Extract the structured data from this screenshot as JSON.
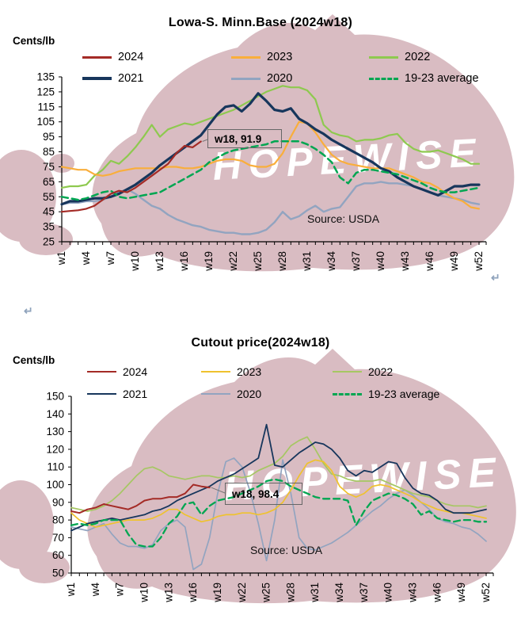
{
  "watermark": {
    "text": "HOPEWISE",
    "color": "#D9BCC2",
    "text_color": "#FFFFFF"
  },
  "page": {
    "return_symbol": "↵"
  },
  "chart_data": [
    {
      "type": "line",
      "title": "Lowa-S. Minn.Base  (2024w18)",
      "y_axis_label": "Cents/lb",
      "source": "Source:  USDA",
      "annotation": {
        "label": "w18, 91.9",
        "week": 18,
        "value": 91.9
      },
      "ylim": [
        25,
        135
      ],
      "y_tick_step": 10,
      "weeks": 52,
      "x_tick_labels": [
        "w1",
        "w4",
        "w7",
        "w10",
        "w13",
        "w16",
        "w19",
        "w22",
        "w25",
        "w28",
        "w31",
        "w34",
        "w37",
        "w40",
        "w43",
        "w46",
        "w49",
        "w52"
      ],
      "legend_position": "top",
      "grid": false,
      "series": [
        {
          "name": "2024",
          "color": "#A42B26",
          "style": "solid",
          "line_width": 2.2,
          "values": [
            45,
            45.5,
            46,
            47,
            49,
            53,
            57,
            59,
            58,
            61,
            65,
            69,
            73,
            77,
            84,
            89,
            88,
            91.9
          ]
        },
        {
          "name": "2023",
          "color": "#F9AE3B",
          "style": "solid",
          "line_width": 2.2,
          "values": [
            75,
            74,
            73,
            73,
            70,
            69,
            70,
            72,
            73,
            74,
            74,
            74,
            74,
            75,
            75,
            74,
            74,
            75,
            77,
            79,
            80,
            80,
            79,
            76,
            75,
            75,
            77,
            84,
            95,
            105,
            104,
            98,
            90,
            83,
            79,
            77,
            76,
            75,
            74,
            74,
            74,
            72,
            70,
            68,
            65,
            64,
            61,
            57,
            54,
            52,
            48,
            47
          ]
        },
        {
          "name": "2022",
          "color": "#8EC94F",
          "style": "solid",
          "line_width": 2.2,
          "values": [
            61,
            62,
            62,
            63,
            69,
            73,
            79,
            77,
            82,
            88,
            95,
            103,
            95,
            100,
            102,
            104,
            103,
            105,
            107,
            109,
            111,
            113,
            116,
            119,
            122,
            125,
            127,
            129,
            128,
            128,
            126,
            120,
            103,
            98,
            96,
            95,
            92,
            93,
            93,
            94,
            96,
            97,
            91,
            87,
            85,
            85,
            86,
            84,
            82,
            80,
            77,
            77
          ]
        },
        {
          "name": "2021",
          "color": "#17365C",
          "style": "solid",
          "line_width": 3.2,
          "values": [
            50,
            52,
            52,
            53,
            54,
            54,
            55,
            57,
            60,
            63,
            67,
            71,
            76,
            80,
            84,
            88,
            92,
            96,
            103,
            110,
            115,
            116,
            112,
            117,
            124,
            119,
            113,
            112,
            114,
            107,
            104,
            100,
            97,
            93,
            90,
            87,
            84,
            81,
            78,
            74,
            72,
            68,
            65,
            62,
            60,
            58,
            56,
            59,
            62,
            62,
            63,
            63
          ]
        },
        {
          "name": "2020",
          "color": "#92A4C0",
          "style": "solid",
          "line_width": 2.4,
          "values": [
            50,
            51,
            51,
            52,
            52,
            53,
            55,
            58,
            60,
            57,
            53,
            49,
            47,
            43,
            40,
            38,
            36,
            35,
            33,
            32,
            31,
            31,
            30,
            30,
            31,
            33,
            38,
            45,
            40,
            42,
            46,
            49,
            45,
            47,
            48,
            55,
            62,
            64,
            64,
            65,
            64,
            64,
            63,
            62,
            60,
            58,
            56,
            55,
            54,
            53,
            51,
            50
          ]
        },
        {
          "name": "19-23 average",
          "color": "#00A651",
          "style": "dashed",
          "line_width": 2.5,
          "values": [
            55,
            54,
            53,
            54,
            56,
            58,
            59,
            55,
            54,
            55,
            56,
            57,
            58,
            61,
            64,
            67,
            70,
            73,
            78,
            81,
            84,
            86,
            87,
            88,
            89,
            90,
            92,
            92,
            92,
            92,
            90,
            87,
            83,
            78,
            68,
            64,
            71,
            73,
            73,
            72,
            71,
            70,
            68,
            66,
            64,
            61,
            59,
            58,
            58,
            59,
            60,
            61
          ]
        }
      ]
    },
    {
      "type": "line",
      "title": "Cutout price(2024w18)",
      "y_axis_label": "Cents/lb",
      "source": "Source:  USDA",
      "annotation": {
        "label": "w18, 98.4",
        "week": 18,
        "value": 98.4
      },
      "ylim": [
        50,
        150
      ],
      "y_tick_step": 10,
      "weeks": 52,
      "x_tick_labels": [
        "w1",
        "w4",
        "w7",
        "w10",
        "w13",
        "w16",
        "w19",
        "w22",
        "w25",
        "w28",
        "w31",
        "w34",
        "w37",
        "w40",
        "w43",
        "w46",
        "w49",
        "w52"
      ],
      "legend_position": "top",
      "grid": false,
      "series": [
        {
          "name": "2024",
          "color": "#A42B26",
          "style": "solid",
          "line_width": 2.0,
          "values": [
            85,
            84,
            86,
            87,
            89,
            88,
            87,
            86,
            88,
            91,
            92,
            92,
            93,
            93,
            95,
            100,
            99,
            98.4
          ]
        },
        {
          "name": "2023",
          "color": "#EFC22E",
          "style": "solid",
          "line_width": 1.7,
          "values": [
            84,
            80,
            78,
            76,
            77,
            78,
            79,
            80,
            80,
            80,
            81,
            83,
            86,
            86,
            83,
            81,
            79,
            80,
            82,
            83,
            83,
            84,
            84,
            83,
            84,
            86,
            90,
            97,
            105,
            112,
            114,
            113,
            108,
            99,
            95,
            93,
            95,
            99,
            100,
            99,
            97,
            95,
            93,
            90,
            88,
            86,
            85,
            84,
            84,
            83,
            82,
            81
          ]
        },
        {
          "name": "2022",
          "color": "#A6C763",
          "style": "solid",
          "line_width": 1.7,
          "values": [
            87,
            86,
            85,
            86,
            88,
            91,
            95,
            100,
            105,
            109,
            110,
            108,
            105,
            104,
            103,
            104,
            105,
            105,
            104,
            104,
            105,
            104,
            105,
            108,
            110,
            112,
            116,
            122,
            125,
            127,
            120,
            112,
            106,
            105,
            103,
            102,
            102,
            102,
            103,
            101,
            99,
            97,
            95,
            94,
            93,
            91,
            89,
            88,
            88,
            88,
            87,
            88
          ]
        },
        {
          "name": "2021",
          "color": "#17365C",
          "style": "solid",
          "line_width": 1.8,
          "values": [
            74,
            76,
            78,
            79,
            80,
            81,
            80,
            81,
            82,
            83,
            85,
            86,
            88,
            91,
            93,
            95,
            97,
            99,
            102,
            104,
            106,
            109,
            112,
            115,
            134,
            111,
            110,
            114,
            118,
            121,
            124,
            123,
            120,
            115,
            108,
            105,
            108,
            107,
            110,
            113,
            112,
            104,
            98,
            95,
            94,
            91,
            86,
            84,
            84,
            84,
            85,
            86
          ]
        },
        {
          "name": "2020",
          "color": "#92A4C0",
          "style": "solid",
          "line_width": 1.7,
          "values": [
            76,
            75,
            74,
            76,
            78,
            72,
            67,
            65,
            65,
            64,
            66,
            74,
            78,
            80,
            76,
            52,
            55,
            70,
            95,
            113,
            115,
            110,
            96,
            78,
            57,
            80,
            114,
            95,
            70,
            64,
            63,
            65,
            67,
            70,
            73,
            77,
            81,
            85,
            88,
            92,
            95,
            97,
            94,
            90,
            86,
            81,
            79,
            78,
            76,
            75,
            72,
            68
          ]
        },
        {
          "name": "19-23 average",
          "color": "#00A651",
          "style": "dashed",
          "line_width": 2.3,
          "values": [
            77,
            78,
            77,
            78,
            80,
            80,
            80,
            72,
            66,
            65,
            65,
            70,
            78,
            82,
            89,
            90,
            83,
            88,
            91,
            92,
            93,
            95,
            97,
            99,
            102,
            103,
            102,
            99,
            97,
            95,
            93,
            92,
            92,
            92,
            91,
            77,
            85,
            91,
            93,
            95,
            94,
            92,
            89,
            83,
            85,
            81,
            80,
            79,
            80,
            80,
            79,
            79
          ]
        }
      ]
    }
  ]
}
